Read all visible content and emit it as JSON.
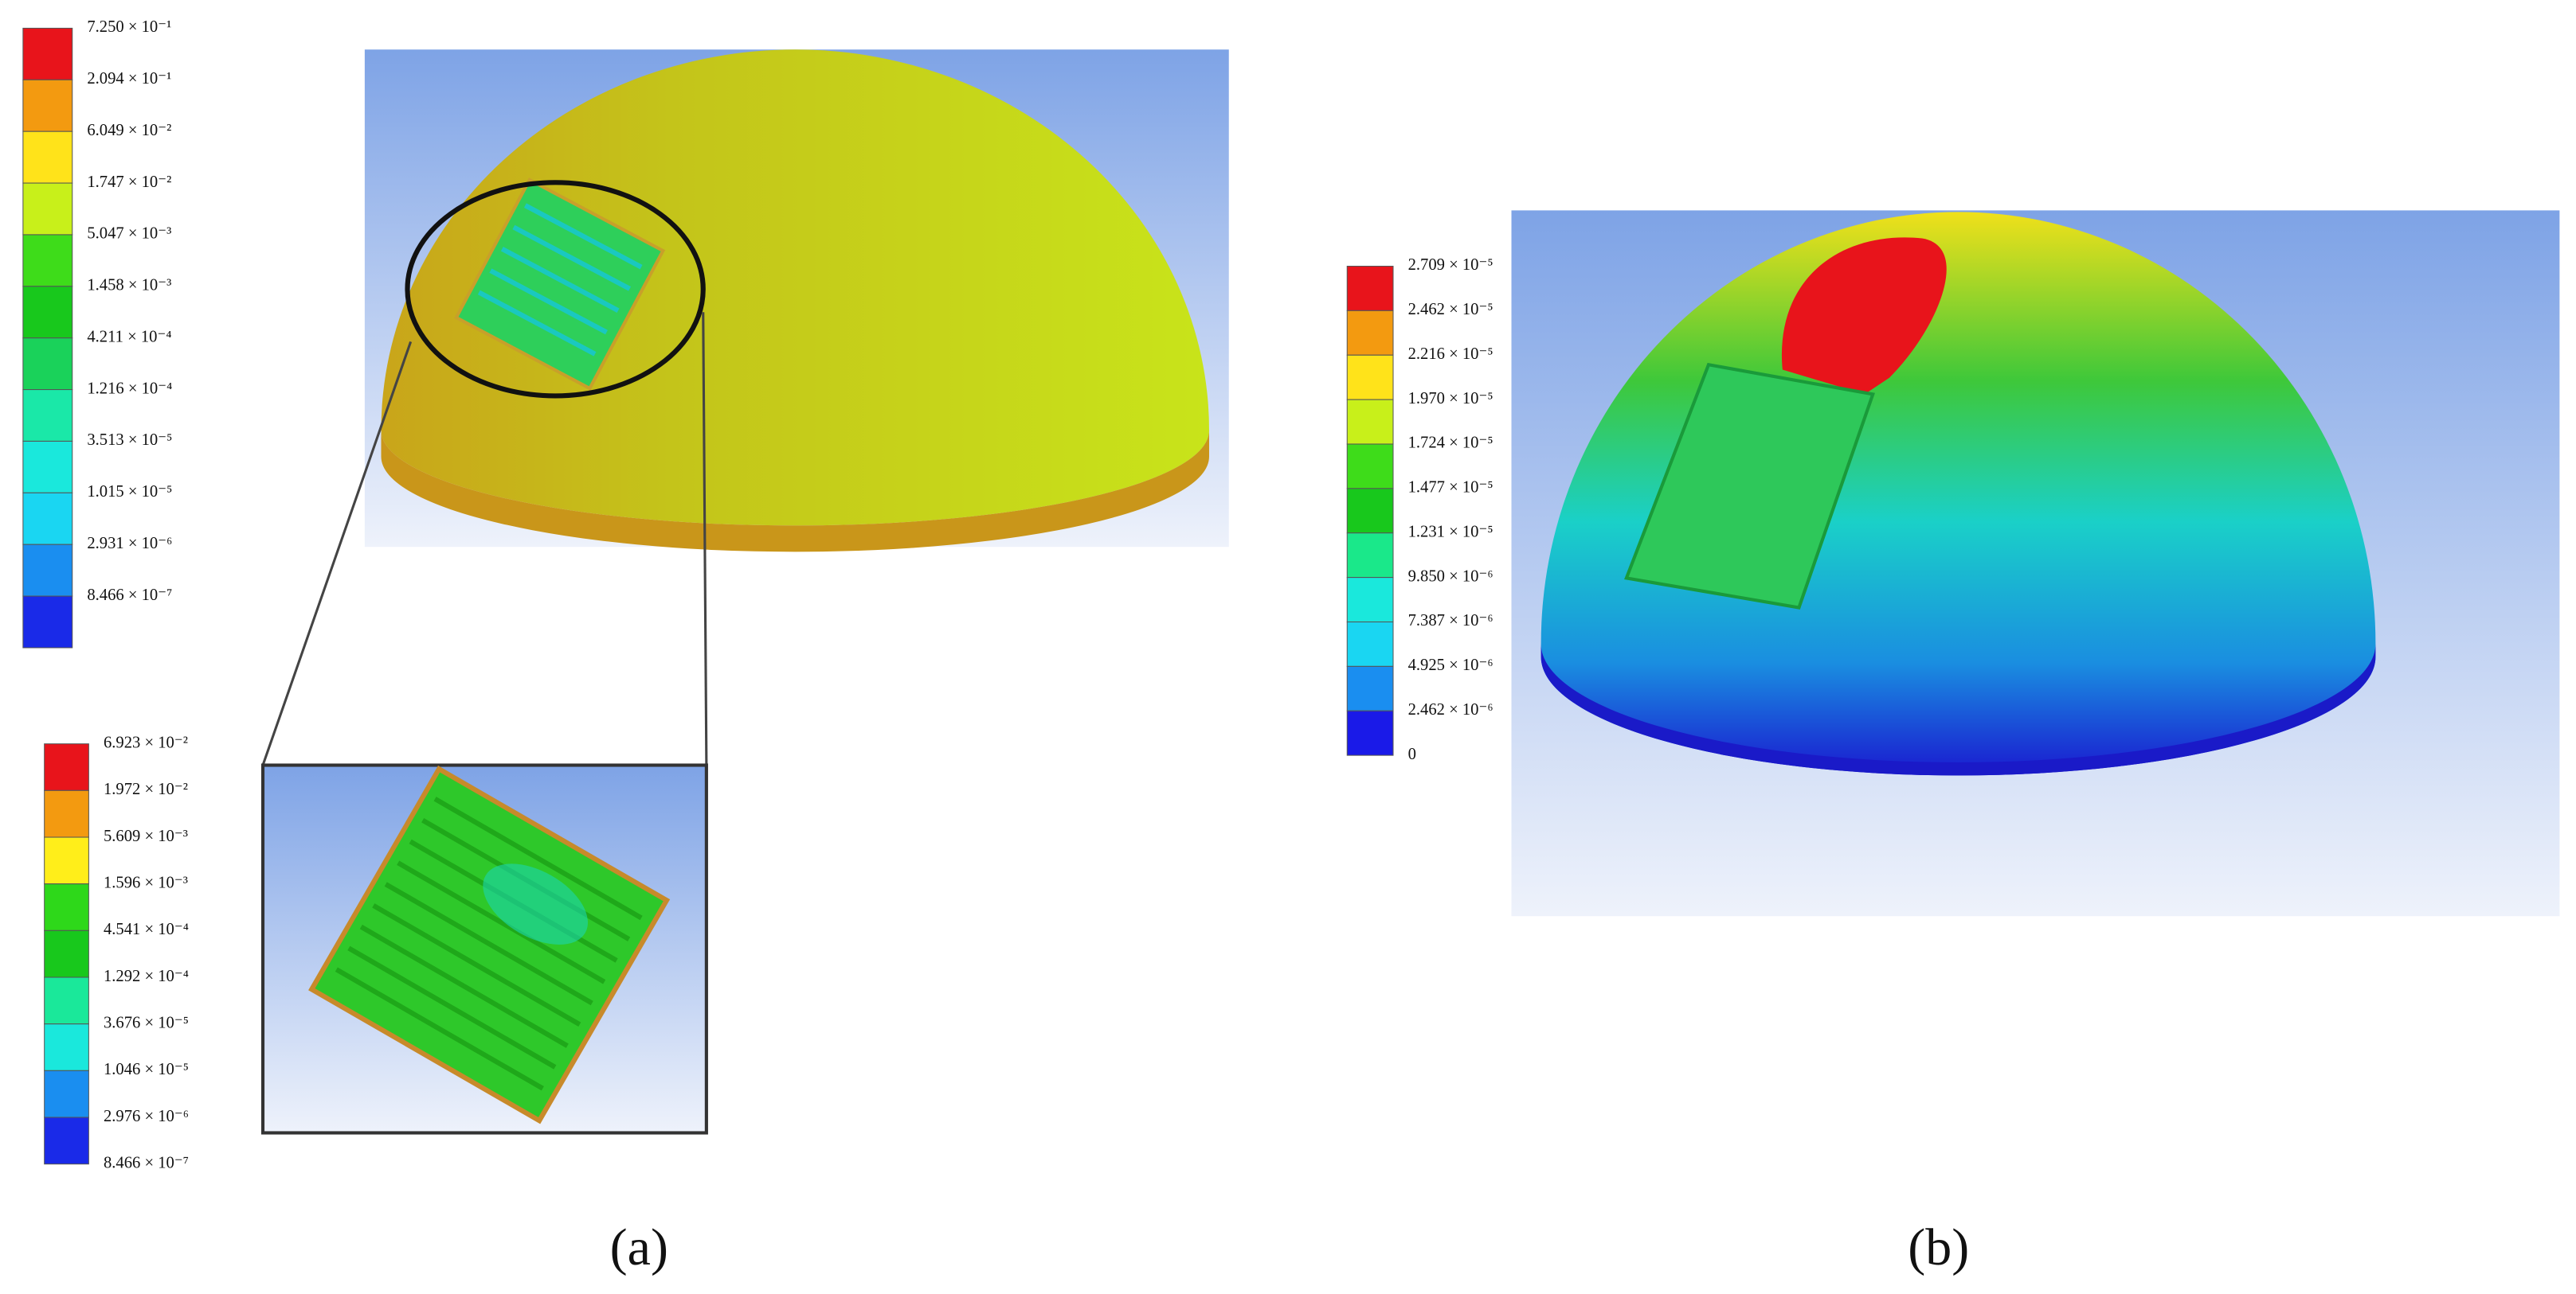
{
  "panel_a": {
    "legend": {
      "labels": [
        "7.250 × 10⁻¹",
        "2.094 × 10⁻¹",
        "6.049 × 10⁻²",
        "1.747 × 10⁻²",
        "5.047 × 10⁻³",
        "1.458 × 10⁻³",
        "4.211 × 10⁻⁴",
        "1.216 × 10⁻⁴",
        "3.513 × 10⁻⁵",
        "1.015 × 10⁻⁵",
        "2.931 × 10⁻⁶",
        "8.466 × 10⁻⁷"
      ],
      "colors": [
        "#e8141b",
        "#f39a10",
        "#ffe31a",
        "#c8f01a",
        "#3edc1a",
        "#18c81c",
        "#1ad25a",
        "#1ae8a8",
        "#1ae8dc",
        "#1ad6f2",
        "#1a8ef0",
        "#1a2ae8"
      ]
    },
    "zoom_legend": {
      "labels": [
        "6.923 × 10⁻²",
        "1.972 × 10⁻²",
        "5.609 × 10⁻³",
        "1.596 × 10⁻³",
        "4.541 × 10⁻⁴",
        "1.292 × 10⁻⁴",
        "3.676 × 10⁻⁵",
        "1.046 × 10⁻⁵",
        "2.976 × 10⁻⁶",
        "8.466 × 10⁻⁷"
      ],
      "colors": [
        "#e8141b",
        "#f39a10",
        "#ffee1a",
        "#2ed81a",
        "#18c81c",
        "#1ae89a",
        "#1ae8dc",
        "#1a8ef0",
        "#1a2ae8"
      ]
    },
    "caption": "(a)"
  },
  "panel_b": {
    "legend": {
      "labels": [
        "2.709 × 10⁻⁵",
        "2.462 × 10⁻⁵",
        "2.216 × 10⁻⁵",
        "1.970 × 10⁻⁵",
        "1.724 × 10⁻⁵",
        "1.477 × 10⁻⁵",
        "1.231 × 10⁻⁵",
        "9.850 × 10⁻⁶",
        "7.387 × 10⁻⁶",
        "4.925 × 10⁻⁶",
        "2.462 × 10⁻⁶",
        "0"
      ],
      "colors": [
        "#e8141b",
        "#f39a10",
        "#ffe31a",
        "#c8f01a",
        "#3edc1a",
        "#18c81c",
        "#1ae88a",
        "#1ae8dc",
        "#1ad6f2",
        "#1a8ef0",
        "#1a1ae8"
      ]
    },
    "caption": "(b)"
  }
}
